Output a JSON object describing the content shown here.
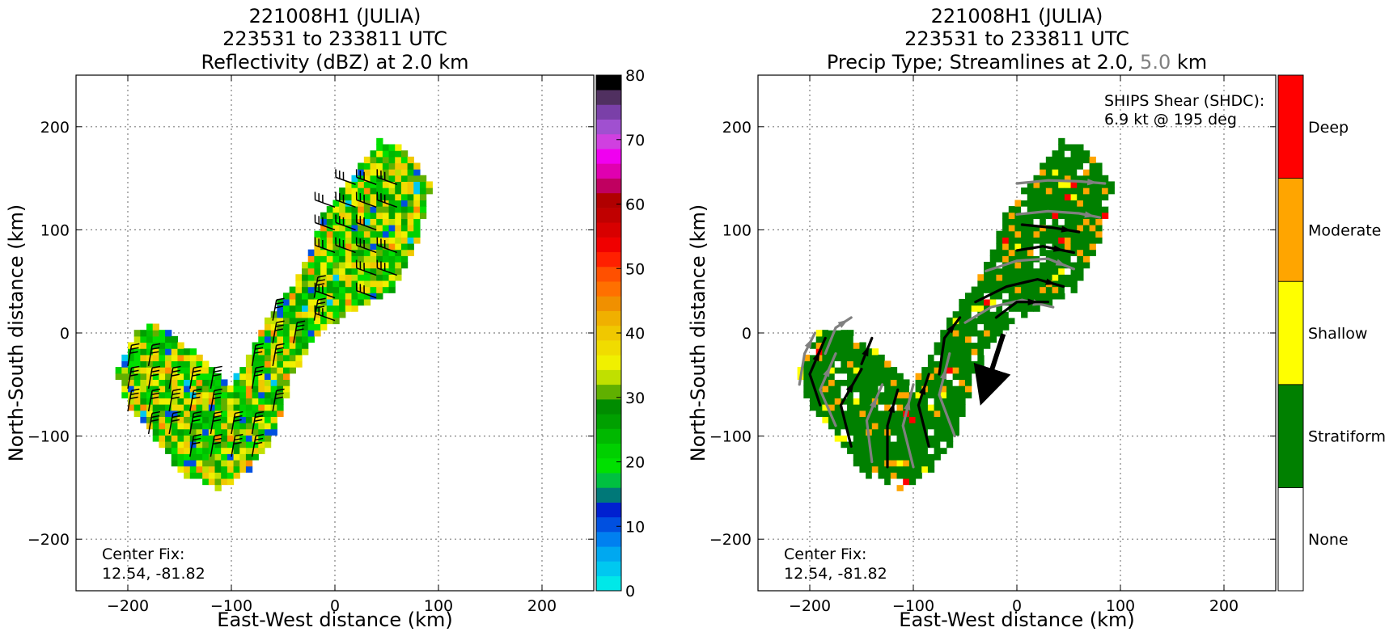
{
  "chart_data": [
    {
      "type": "heatmap",
      "title": [
        "221008H1 (JULIA)",
        "223531 to 233811 UTC",
        "Reflectivity (dBZ) at 2.0 km"
      ],
      "xlabel": "East-West distance (km)",
      "ylabel": "North-South distance (km)",
      "xlim": [
        -250,
        250
      ],
      "ylim": [
        -250,
        250
      ],
      "xticks": [
        -200,
        -100,
        0,
        100,
        200
      ],
      "yticks": [
        -200,
        -100,
        0,
        100,
        200
      ],
      "grid": true,
      "annotation": [
        "Center Fix:",
        "12.54, -81.82"
      ],
      "colorbar": {
        "min": 0,
        "max": 80,
        "ticks": [
          0,
          10,
          20,
          30,
          40,
          50,
          60,
          70,
          80
        ],
        "colors": [
          "#00e8e8",
          "#00c8f0",
          "#00a8f0",
          "#0080f0",
          "#0050e0",
          "#0020d0",
          "#007878",
          "#00c040",
          "#00e000",
          "#00d000",
          "#00b800",
          "#00a000",
          "#008c00",
          "#60b000",
          "#c0e000",
          "#f0f000",
          "#f0dc00",
          "#f0c800",
          "#f0b000",
          "#f09000",
          "#ff7000",
          "#ff5000",
          "#ff2000",
          "#f00000",
          "#d80000",
          "#c00000",
          "#b00000",
          "#c00060",
          "#e000b0",
          "#f000f0",
          "#d040e0",
          "#a050d0",
          "#7a40a8",
          "#503060",
          "#000000"
        ]
      },
      "echo_region": [
        {
          "x": 65,
          "y": 175
        },
        {
          "x": 90,
          "y": 140
        },
        {
          "x": 75,
          "y": 80
        },
        {
          "x": 50,
          "y": 35
        },
        {
          "x": 10,
          "y": 15
        },
        {
          "x": -20,
          "y": -5
        },
        {
          "x": -45,
          "y": -45
        },
        {
          "x": -60,
          "y": -100
        },
        {
          "x": -85,
          "y": -135
        },
        {
          "x": -115,
          "y": -155
        },
        {
          "x": -150,
          "y": -140
        },
        {
          "x": -180,
          "y": -100
        },
        {
          "x": -205,
          "y": -70
        },
        {
          "x": -215,
          "y": -40
        },
        {
          "x": -195,
          "y": 0
        },
        {
          "x": -175,
          "y": 5
        },
        {
          "x": -140,
          "y": -20
        },
        {
          "x": -105,
          "y": -55
        },
        {
          "x": -85,
          "y": -25
        },
        {
          "x": -65,
          "y": 15
        },
        {
          "x": -35,
          "y": 55
        },
        {
          "x": -15,
          "y": 110
        },
        {
          "x": 15,
          "y": 150
        },
        {
          "x": 40,
          "y": 185
        }
      ]
    },
    {
      "type": "heatmap",
      "title": [
        "221008H1 (JULIA)",
        "223531 to 233811 UTC"
      ],
      "title_line3_parts": [
        "Precip Type; Streamlines at 2.0, ",
        "5.0",
        " km"
      ],
      "title_line3_colors": [
        "#000000",
        "#808080",
        "#000000"
      ],
      "xlabel": "East-West distance (km)",
      "ylabel": "North-South distance (km)",
      "xlim": [
        -250,
        250
      ],
      "ylim": [
        -250,
        250
      ],
      "xticks": [
        -200,
        -100,
        0,
        100,
        200
      ],
      "yticks": [
        -200,
        -100,
        0,
        100,
        200
      ],
      "grid": true,
      "annotation": [
        "Center Fix:",
        "12.54, -81.82"
      ],
      "shear_text": [
        "SHIPS Shear (SHDC):",
        "6.9 kt @ 195 deg"
      ],
      "shear_vector": {
        "from": {
          "x": -23,
          "y": -1
        },
        "to": {
          "x": -23,
          "y": -69
        }
      },
      "categories": [
        "None",
        "Stratiform",
        "Shallow",
        "Moderate",
        "Deep"
      ],
      "category_colors": [
        "#ffffff",
        "#008000",
        "#ffff00",
        "#ffa500",
        "#ff0000"
      ],
      "echo_region": [
        {
          "x": 65,
          "y": 175
        },
        {
          "x": 90,
          "y": 140
        },
        {
          "x": 75,
          "y": 80
        },
        {
          "x": 50,
          "y": 35
        },
        {
          "x": 10,
          "y": 15
        },
        {
          "x": -20,
          "y": -5
        },
        {
          "x": -45,
          "y": -45
        },
        {
          "x": -60,
          "y": -100
        },
        {
          "x": -85,
          "y": -135
        },
        {
          "x": -115,
          "y": -155
        },
        {
          "x": -150,
          "y": -140
        },
        {
          "x": -180,
          "y": -100
        },
        {
          "x": -205,
          "y": -70
        },
        {
          "x": -215,
          "y": -40
        },
        {
          "x": -195,
          "y": 0
        },
        {
          "x": -175,
          "y": 5
        },
        {
          "x": -140,
          "y": -20
        },
        {
          "x": -105,
          "y": -55
        },
        {
          "x": -85,
          "y": -25
        },
        {
          "x": -65,
          "y": 15
        },
        {
          "x": -35,
          "y": 55
        },
        {
          "x": -15,
          "y": 110
        },
        {
          "x": 15,
          "y": 150
        },
        {
          "x": 40,
          "y": 185
        }
      ]
    }
  ]
}
